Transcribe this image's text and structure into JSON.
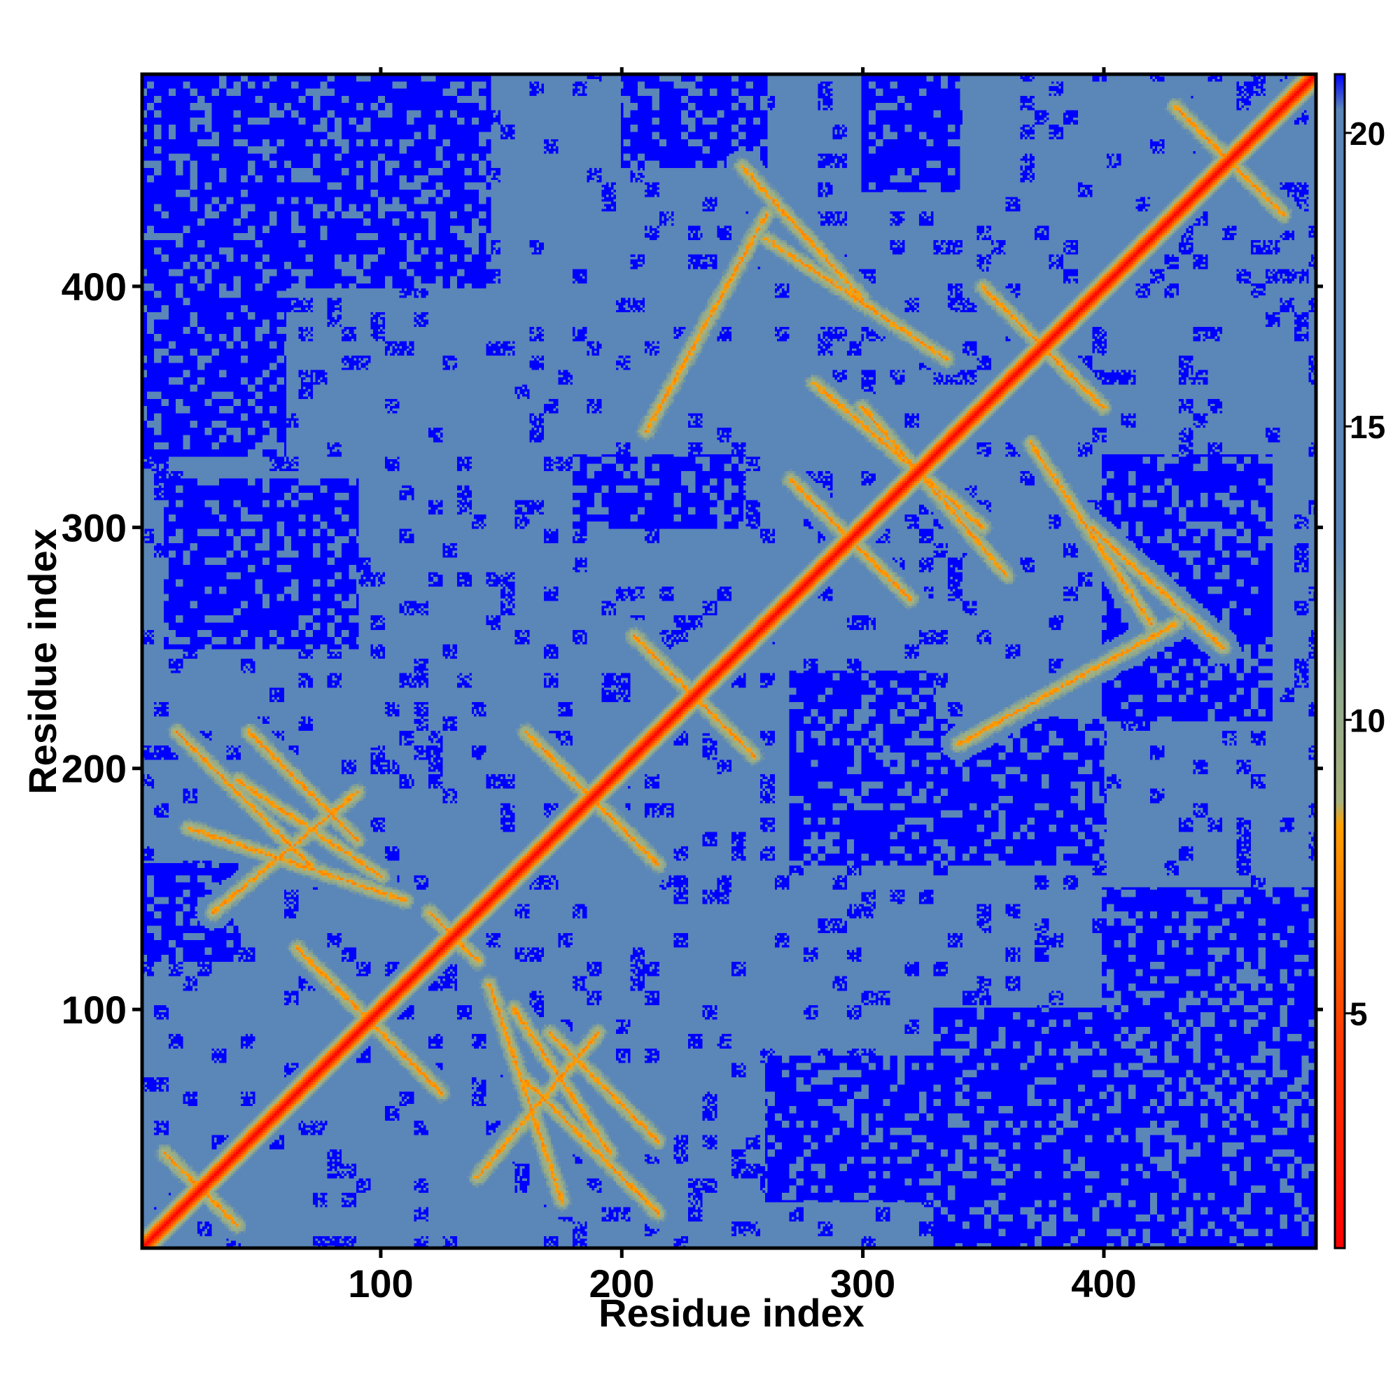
{
  "chart_data": {
    "type": "heatmap",
    "title": "",
    "xlabel": "Residue index",
    "ylabel": "Residue index",
    "xlim": [
      1,
      488
    ],
    "ylim": [
      1,
      488
    ],
    "x_ticks": [
      100,
      200,
      300,
      400
    ],
    "y_ticks": [
      100,
      200,
      300,
      400
    ],
    "x_tick_labels": [
      "100",
      "200",
      "300",
      "400"
    ],
    "y_tick_labels": [
      "100",
      "200",
      "300",
      "400"
    ],
    "n_residues": 488,
    "value_range": [
      1,
      21
    ],
    "colorbar": {
      "ticks": [
        5,
        10,
        15,
        20
      ],
      "tick_labels": [
        "5",
        "10",
        "15",
        "20"
      ],
      "range": [
        1,
        21
      ],
      "colors": {
        "low": "#ff0000",
        "mid_low": "#ff8c00",
        "mid": "#9aae7c",
        "high": "#5a86b8",
        "max": "#0000ff"
      }
    },
    "colors": {
      "diagonal": "#ff0000",
      "contact": "#ff9a00",
      "near": "#a8b582",
      "background": "#5a86b8",
      "far": "#0000ff"
    },
    "features": {
      "diagonal_value": 1,
      "background_value": 18,
      "far_value": 21,
      "secondary_contact_lines": [
        {
          "x": [
            10,
            40
          ],
          "y": [
            40,
            10
          ]
        },
        {
          "x": [
            65,
            125
          ],
          "y": [
            125,
            65
          ]
        },
        {
          "x": [
            120,
            140
          ],
          "y": [
            140,
            120
          ]
        },
        {
          "x": [
            160,
            215
          ],
          "y": [
            215,
            160
          ]
        },
        {
          "x": [
            205,
            255
          ],
          "y": [
            255,
            205
          ]
        },
        {
          "x": [
            270,
            320
          ],
          "y": [
            320,
            270
          ]
        },
        {
          "x": [
            350,
            400
          ],
          "y": [
            400,
            350
          ]
        },
        {
          "x": [
            430,
            475
          ],
          "y": [
            475,
            430
          ]
        },
        {
          "x": [
            15,
            70
          ],
          "y": [
            215,
            160
          ]
        },
        {
          "x": [
            40,
            100
          ],
          "y": [
            195,
            155
          ]
        },
        {
          "x": [
            30,
            90
          ],
          "y": [
            140,
            190
          ]
        },
        {
          "x": [
            170,
            215
          ],
          "y": [
            90,
            45
          ]
        },
        {
          "x": [
            145,
            175
          ],
          "y": [
            110,
            20
          ]
        },
        {
          "x": [
            260,
            335
          ],
          "y": [
            420,
            370
          ]
        },
        {
          "x": [
            300,
            360
          ],
          "y": [
            350,
            280
          ]
        },
        {
          "x": [
            395,
            450
          ],
          "y": [
            300,
            250
          ]
        },
        {
          "x": [
            340,
            430
          ],
          "y": [
            210,
            260
          ]
        }
      ],
      "far_regions": [
        {
          "x": [
            1,
            60
          ],
          "y": [
            330,
            488
          ]
        },
        {
          "x": [
            60,
            145
          ],
          "y": [
            400,
            488
          ]
        },
        {
          "x": [
            10,
            90
          ],
          "y": [
            250,
            320
          ]
        },
        {
          "x": [
            330,
            488
          ],
          "y": [
            1,
            100
          ]
        },
        {
          "x": [
            400,
            488
          ],
          "y": [
            100,
            150
          ]
        },
        {
          "x": [
            260,
            400
          ],
          "y": [
            20,
            80
          ]
        },
        {
          "x": [
            1,
            40
          ],
          "y": [
            120,
            160
          ]
        },
        {
          "x": [
            200,
            260
          ],
          "y": [
            450,
            488
          ]
        },
        {
          "x": [
            300,
            340
          ],
          "y": [
            440,
            488
          ]
        },
        {
          "x": [
            180,
            250
          ],
          "y": [
            300,
            330
          ]
        },
        {
          "x": [
            270,
            330
          ],
          "y": [
            160,
            240
          ]
        },
        {
          "x": [
            330,
            400
          ],
          "y": [
            160,
            220
          ]
        },
        {
          "x": [
            400,
            470
          ],
          "y": [
            220,
            330
          ]
        }
      ]
    }
  }
}
